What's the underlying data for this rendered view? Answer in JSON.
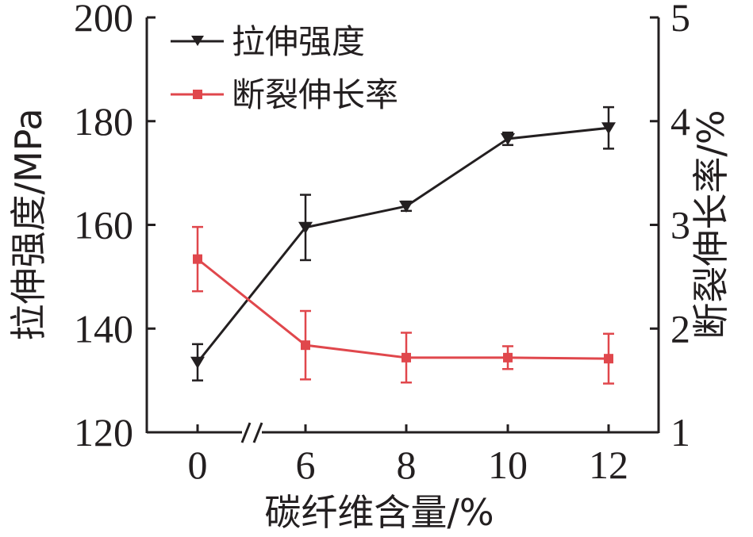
{
  "chart_data": {
    "type": "line",
    "categories": [
      "0",
      "6",
      "8",
      "10",
      "12"
    ],
    "xlabel": "碳纤维含量/%",
    "ylabel_left": "拉伸强度/MPa",
    "ylabel_right": "断裂伸长率/%",
    "ylim_left": [
      120,
      200
    ],
    "yticks_left": [
      "120",
      "140",
      "160",
      "180",
      "200"
    ],
    "ylim_right": [
      1,
      5
    ],
    "yticks_right": [
      "1",
      "2",
      "3",
      "4",
      "5"
    ],
    "x_axis_break": "between 0 and 6",
    "legend_position": "top-left",
    "grid": false,
    "series": [
      {
        "name": "拉伸强度",
        "axis": "left",
        "color": "#231f20",
        "marker": "triangle-down",
        "values": [
          133.5,
          159.5,
          163.6,
          176.6,
          178.7
        ],
        "errors": [
          3.5,
          6.3,
          0.9,
          1.2,
          4.0
        ]
      },
      {
        "name": "断裂伸长率",
        "axis": "right",
        "color": "#e0474c",
        "marker": "square",
        "values": [
          2.67,
          1.84,
          1.72,
          1.72,
          1.71
        ],
        "errors": [
          0.31,
          0.33,
          0.24,
          0.11,
          0.24
        ]
      }
    ]
  }
}
